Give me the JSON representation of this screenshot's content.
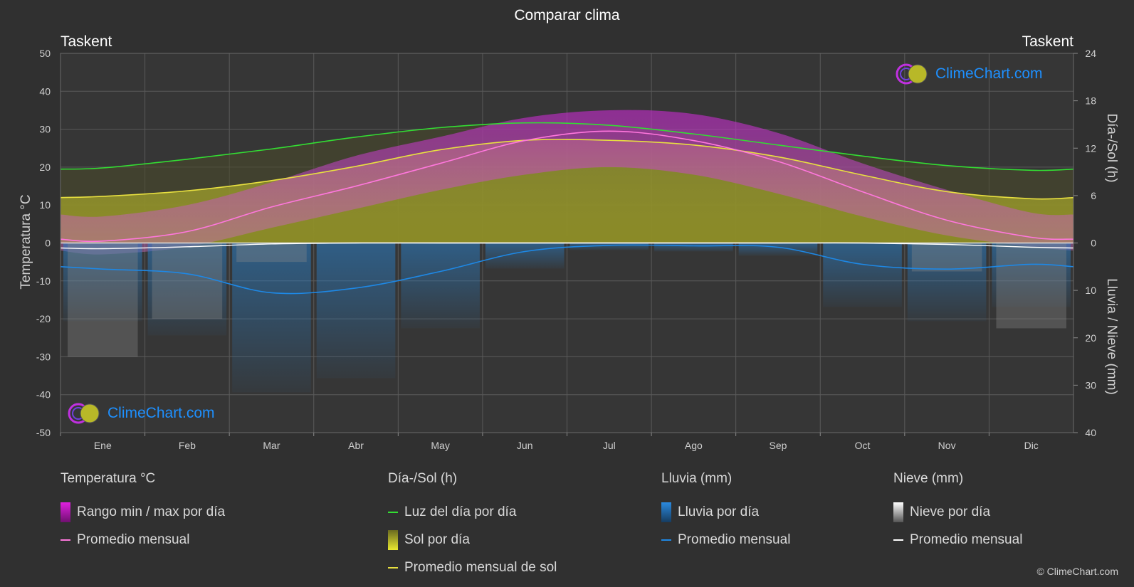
{
  "title": "Comparar clima",
  "location_left": "Taskent",
  "location_right": "Taskent",
  "brand": "ClimeChart.com",
  "copyright": "© ClimeChart.com",
  "colors": {
    "background": "#303030",
    "grid": "#5a5a5a",
    "temp_range": "#c02ac8",
    "temp_avg": "#ff77dd",
    "daylight": "#33dd33",
    "sun_fill": "#9a9a28",
    "sun_avg": "#e8e040",
    "rain": "#2a7fc8",
    "rain_avg": "#1e88e5",
    "snow": "#8a8a8a",
    "snow_avg": "#ffffff",
    "brand": "#1e90ff"
  },
  "chart_data": {
    "type": "area",
    "months": [
      "Ene",
      "Feb",
      "Mar",
      "Abr",
      "May",
      "Jun",
      "Jul",
      "Ago",
      "Sep",
      "Oct",
      "Nov",
      "Dic"
    ],
    "left_axis": {
      "label": "Temperatura °C",
      "ticks": [
        50,
        40,
        30,
        20,
        10,
        0,
        -10,
        -20,
        -30,
        -40,
        -50
      ],
      "range": [
        -50,
        50
      ]
    },
    "right_axis_top": {
      "label": "Día-/Sol (h)",
      "ticks": [
        24,
        18,
        12,
        6,
        0
      ],
      "range": [
        0,
        24
      ]
    },
    "right_axis_bottom": {
      "label": "Lluvia / Nieve (mm)",
      "ticks": [
        0,
        10,
        20,
        30,
        40
      ],
      "range": [
        0,
        40
      ]
    },
    "series": [
      {
        "name": "Rango min / max por día",
        "unit": "°C",
        "min": [
          -3,
          -1,
          4,
          9,
          14,
          18,
          20,
          18,
          13,
          7,
          2,
          -1
        ],
        "max": [
          7,
          10,
          16,
          23,
          28,
          33,
          35,
          34,
          29,
          21,
          14,
          8
        ]
      },
      {
        "name": "Promedio mensual",
        "unit": "°C",
        "values": [
          0.5,
          3,
          9.5,
          15,
          21,
          27,
          29.5,
          27,
          21.5,
          13.5,
          6,
          1.5
        ]
      },
      {
        "name": "Luz del día por día",
        "unit": "h",
        "values": [
          9.5,
          10.6,
          11.9,
          13.4,
          14.6,
          15.2,
          14.9,
          13.8,
          12.4,
          11.0,
          9.8,
          9.2
        ]
      },
      {
        "name": "Promedio mensual de sol",
        "unit": "h",
        "values": [
          5.9,
          6.6,
          7.9,
          9.7,
          11.8,
          13.0,
          13.0,
          12.4,
          10.9,
          8.6,
          6.5,
          5.6
        ]
      },
      {
        "name": "Lluvia por día",
        "unit": "mm",
        "values": [
          5.5,
          6.5,
          10.5,
          9.5,
          6,
          1.8,
          0.5,
          0.6,
          0.9,
          4.5,
          5.5,
          4.5
        ]
      },
      {
        "name": "Nieve por día",
        "unit": "mm",
        "values": [
          1.2,
          0.8,
          0.2,
          0,
          0,
          0,
          0,
          0,
          0,
          0,
          0.3,
          0.9
        ]
      }
    ]
  },
  "legend": [
    {
      "header": "Temperatura °C",
      "items": [
        {
          "label": "Rango min / max por día",
          "kind": "box",
          "color": "#e020e0"
        },
        {
          "label": "Promedio mensual",
          "kind": "line",
          "color": "#ff77dd"
        }
      ]
    },
    {
      "header": "Día-/Sol (h)",
      "items": [
        {
          "label": "Luz del día por día",
          "kind": "line",
          "color": "#33dd33"
        },
        {
          "label": "Sol por día",
          "kind": "box",
          "color": "#d4d430"
        },
        {
          "label": "Promedio mensual de sol",
          "kind": "line",
          "color": "#e8e040"
        }
      ]
    },
    {
      "header": "Lluvia (mm)",
      "items": [
        {
          "label": "Lluvia por día",
          "kind": "box",
          "color": "#2a8ae0"
        },
        {
          "label": "Promedio mensual",
          "kind": "line",
          "color": "#1e88e5"
        }
      ]
    },
    {
      "header": "Nieve (mm)",
      "items": [
        {
          "label": "Nieve por día",
          "kind": "box",
          "color": "#d8d8d8"
        },
        {
          "label": "Promedio mensual",
          "kind": "line",
          "color": "#ffffff"
        }
      ]
    }
  ]
}
